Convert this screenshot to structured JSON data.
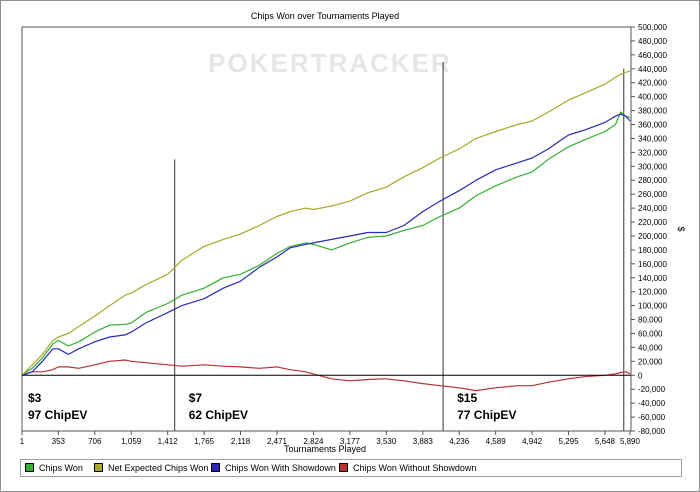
{
  "chart_data": {
    "type": "line",
    "title": "Chips Won over Tournaments Played",
    "xlabel": "Tournaments Played",
    "ylabel": "$",
    "watermark": "POKERTRACKER",
    "xlim": [
      1,
      5900
    ],
    "ylim": [
      -80000,
      500000
    ],
    "x_ticks": [
      "1",
      "353",
      "706",
      "1,059",
      "1,412",
      "1,765",
      "2,118",
      "2,471",
      "2,824",
      "3,177",
      "3,530",
      "3,883",
      "4,236",
      "4,589",
      "4,942",
      "5,295",
      "5,648",
      "5,890"
    ],
    "y_ticks": [
      "500,000",
      "480,000",
      "460,000",
      "440,000",
      "420,000",
      "400,000",
      "380,000",
      "360,000",
      "340,000",
      "320,000",
      "300,000",
      "280,000",
      "260,000",
      "240,000",
      "220,000",
      "200,000",
      "180,000",
      "160,000",
      "140,000",
      "120,000",
      "100,000",
      "80,000",
      "60,000",
      "40,000",
      "20,000",
      "0",
      "-20,000",
      "-40,000",
      "-60,000",
      "-80,000"
    ],
    "grid": false,
    "legend_position": "bottom",
    "series": [
      {
        "name": "Chips Won",
        "color": "#33b033",
        "x": [
          1,
          100,
          200,
          300,
          353,
          450,
          550,
          706,
          850,
          1000,
          1059,
          1200,
          1412,
          1550,
          1765,
          1950,
          2118,
          2300,
          2471,
          2600,
          2750,
          2824,
          3000,
          3177,
          3350,
          3530,
          3700,
          3883,
          4050,
          4236,
          4400,
          4589,
          4800,
          4942,
          5100,
          5295,
          5450,
          5648,
          5750,
          5800,
          5850,
          5890
        ],
        "y": [
          0,
          10000,
          25000,
          45000,
          50000,
          42000,
          48000,
          62000,
          72000,
          73000,
          75000,
          90000,
          103000,
          115000,
          125000,
          140000,
          145000,
          158000,
          175000,
          185000,
          190000,
          188000,
          180000,
          190000,
          198000,
          200000,
          208000,
          215000,
          228000,
          240000,
          258000,
          272000,
          285000,
          292000,
          310000,
          328000,
          338000,
          350000,
          360000,
          378000,
          372000,
          370000
        ]
      },
      {
        "name": "Net Expected Chips Won",
        "color": "#a8a82a",
        "x": [
          1,
          100,
          200,
          300,
          353,
          450,
          550,
          706,
          850,
          1000,
          1059,
          1200,
          1412,
          1550,
          1765,
          1950,
          2118,
          2300,
          2471,
          2600,
          2750,
          2824,
          3000,
          3177,
          3350,
          3530,
          3700,
          3883,
          4050,
          4236,
          4400,
          4589,
          4800,
          4942,
          5100,
          5295,
          5450,
          5648,
          5750,
          5800,
          5850,
          5890
        ],
        "y": [
          0,
          15000,
          30000,
          50000,
          55000,
          60000,
          70000,
          85000,
          100000,
          115000,
          118000,
          130000,
          145000,
          165000,
          185000,
          195000,
          203000,
          215000,
          228000,
          235000,
          240000,
          238000,
          243000,
          250000,
          262000,
          270000,
          285000,
          298000,
          312000,
          325000,
          340000,
          350000,
          360000,
          365000,
          378000,
          395000,
          405000,
          418000,
          428000,
          432000,
          435000,
          437000
        ]
      },
      {
        "name": "Chips Won With Showdown",
        "color": "#2a2ab5",
        "x": [
          1,
          100,
          200,
          300,
          353,
          450,
          550,
          706,
          850,
          1000,
          1059,
          1200,
          1412,
          1550,
          1765,
          1950,
          2118,
          2300,
          2471,
          2600,
          2750,
          2824,
          3000,
          3177,
          3350,
          3530,
          3700,
          3883,
          4050,
          4236,
          4400,
          4589,
          4800,
          4942,
          5100,
          5295,
          5450,
          5648,
          5750,
          5800,
          5850,
          5890
        ],
        "y": [
          0,
          5000,
          20000,
          38000,
          38000,
          30000,
          38000,
          48000,
          55000,
          58000,
          62000,
          75000,
          90000,
          100000,
          110000,
          125000,
          135000,
          155000,
          170000,
          183000,
          188000,
          190000,
          195000,
          200000,
          205000,
          205000,
          215000,
          235000,
          250000,
          265000,
          280000,
          295000,
          305000,
          312000,
          325000,
          345000,
          352000,
          363000,
          372000,
          375000,
          372000,
          365000
        ]
      },
      {
        "name": "Chips Won Without Showdown",
        "color": "#b83232",
        "x": [
          1,
          100,
          200,
          300,
          353,
          450,
          550,
          706,
          850,
          1000,
          1059,
          1200,
          1412,
          1550,
          1765,
          1950,
          2118,
          2300,
          2471,
          2600,
          2750,
          2824,
          3000,
          3177,
          3350,
          3530,
          3700,
          3883,
          4050,
          4236,
          4400,
          4589,
          4800,
          4942,
          5100,
          5295,
          5450,
          5648,
          5750,
          5800,
          5850,
          5890
        ],
        "y": [
          0,
          5000,
          5000,
          8000,
          12000,
          12000,
          10000,
          15000,
          20000,
          22000,
          20000,
          18000,
          15000,
          13000,
          15000,
          13000,
          12000,
          10000,
          12000,
          8000,
          5000,
          2000,
          -5000,
          -8000,
          -6000,
          -5000,
          -8000,
          -12000,
          -15000,
          -18000,
          -22000,
          -18000,
          -15000,
          -15000,
          -10000,
          -5000,
          -2000,
          0,
          2000,
          4000,
          5000,
          2000
        ]
      }
    ],
    "annotations": [
      {
        "x": 1,
        "label_stake": "$3",
        "label_ev": "97 ChipEV"
      },
      {
        "x": 1480,
        "label_stake": "$7",
        "label_ev": "62 ChipEV"
      },
      {
        "x": 4080,
        "label_stake": "$15",
        "label_ev": "77 ChipEV"
      },
      {
        "x": 5830,
        "label_stake": "",
        "label_ev": ""
      }
    ]
  }
}
